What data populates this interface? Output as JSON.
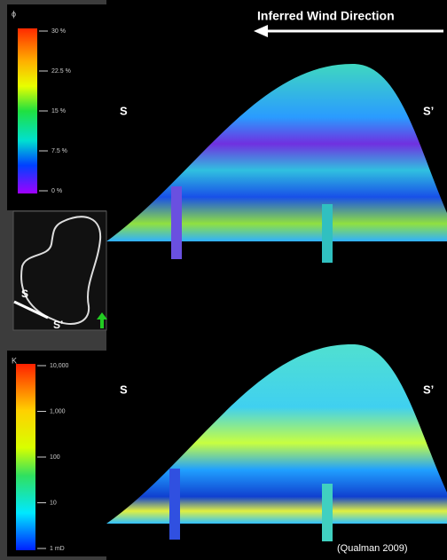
{
  "title": "Inferred Wind Direction",
  "porosity_legend": {
    "symbol": "ϕ",
    "ticks": [
      "30 %",
      "22.5 %",
      "15 %",
      "7.5 %",
      "0 %"
    ]
  },
  "permeability_legend": {
    "symbol": "K",
    "ticks": [
      "10,000",
      "1,000",
      "100",
      "10",
      "1 mD"
    ]
  },
  "panels": [
    {
      "left": "S",
      "right": "S’"
    },
    {
      "left": "S",
      "right": "S’"
    }
  ],
  "map": {
    "start": "S",
    "end": "S’"
  },
  "citation": "(Qualman 2009)"
}
